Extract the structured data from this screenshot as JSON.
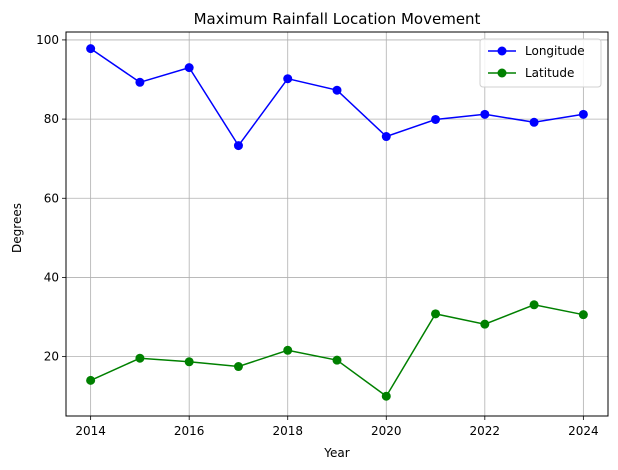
{
  "chart_data": {
    "type": "line",
    "title": "Maximum Rainfall Location Movement",
    "xlabel": "Year",
    "ylabel": "Degrees",
    "x": [
      2014,
      2015,
      2016,
      2017,
      2018,
      2019,
      2020,
      2021,
      2022,
      2023,
      2024
    ],
    "xlim": [
      2013.5,
      2024.5
    ],
    "ylim": [
      5,
      102
    ],
    "xticks": [
      2014,
      2016,
      2018,
      2020,
      2022,
      2024
    ],
    "yticks": [
      20,
      40,
      60,
      80,
      100
    ],
    "grid": true,
    "legend_position": "top-right",
    "series": [
      {
        "name": "Longitude",
        "color": "#0000ff",
        "values": [
          97.8,
          89.3,
          93.0,
          73.3,
          90.2,
          87.3,
          75.6,
          79.9,
          81.2,
          79.2,
          81.2
        ]
      },
      {
        "name": "Latitude",
        "color": "#008000",
        "values": [
          14.0,
          19.6,
          18.7,
          17.5,
          21.6,
          19.1,
          10.0,
          30.8,
          28.2,
          33.1,
          30.6
        ]
      }
    ]
  }
}
